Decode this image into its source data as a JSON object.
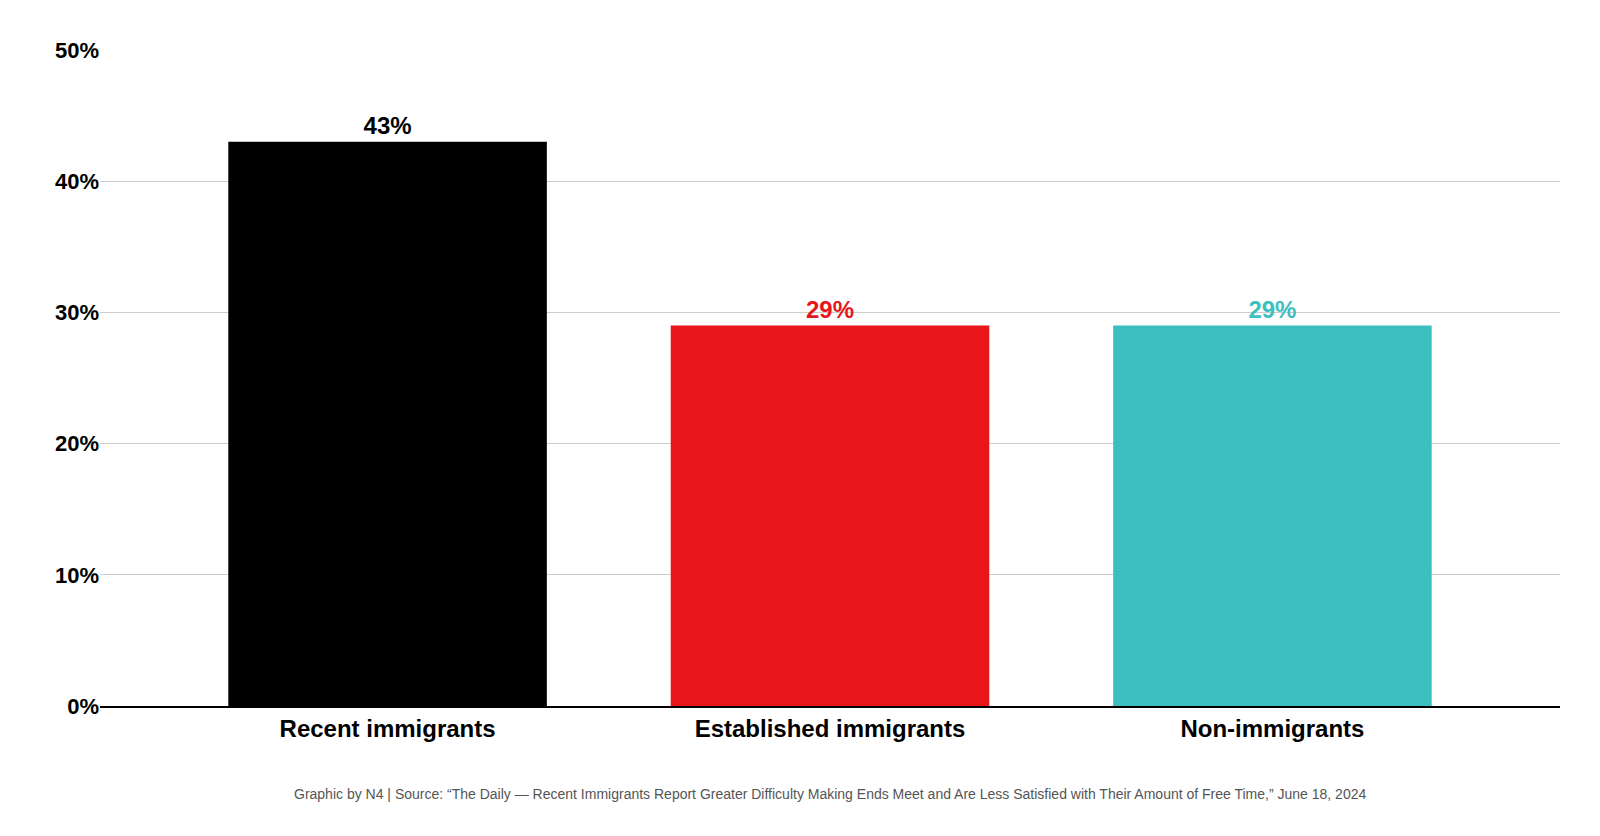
{
  "chart_data": {
    "type": "bar",
    "categories": [
      "Recent immigrants",
      "Established immigrants",
      "Non-immigrants"
    ],
    "values": [
      0.43,
      0.29,
      0.29
    ],
    "value_labels": [
      "43%",
      "29%",
      "29%"
    ],
    "data_labels": true,
    "colors": [
      "#000000",
      "#e8151b",
      "#3dbfbf"
    ],
    "ylim": [
      0,
      0.5
    ],
    "yticks": [
      {
        "value": 0.0,
        "label": "0%"
      },
      {
        "value": 0.1,
        "label": "10%"
      },
      {
        "value": 0.2,
        "label": "20%"
      },
      {
        "value": 0.3,
        "label": "30%"
      },
      {
        "value": 0.4,
        "label": "40%"
      },
      {
        "value": 0.5,
        "label": "50%"
      }
    ],
    "grid": true,
    "annotations": [
      "Graphic by N4 | Source: “The Daily — Recent Immigrants Report Greater Difficulty Making Ends Meet and Are Less Satisfied with Their Amount of Free Time,” June 18, 2024"
    ]
  }
}
